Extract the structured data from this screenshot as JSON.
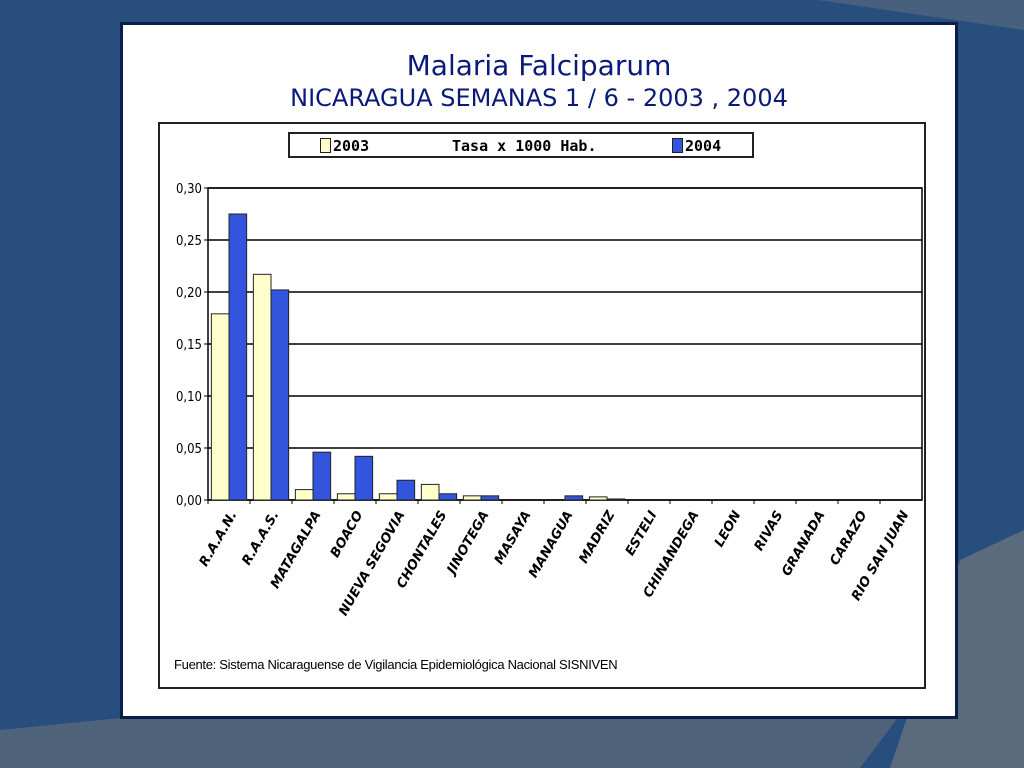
{
  "slide": {
    "title": "Malaria Falciparum",
    "subtitle": "NICARAGUA SEMANAS 1 / 6  -  2003 , 2004"
  },
  "legend": {
    "series_2003": "2003",
    "middle_text": "Tasa x 1000 Hab.",
    "series_2004": "2004"
  },
  "source": "Fuente: Sistema Nicaraguense de Vigilancia Epidemiológica Nacional SISNIVEN",
  "colors": {
    "background": "#274e7d",
    "series_2003": "#ffffcc",
    "series_2004": "#3355dd",
    "title": "#0a1a7a"
  },
  "chart_data": {
    "type": "bar",
    "categories": [
      "R.A.A.N.",
      "R.A.A.S.",
      "MATAGALPA",
      "BOACO",
      "NUEVA SEGOVIA",
      "CHONTALES",
      "JINOTEGA",
      "MASAYA",
      "MANAGUA",
      "MADRIZ",
      "ESTELI",
      "CHINANDEGA",
      "LEON",
      "RIVAS",
      "GRANADA",
      "CARAZO",
      "RIO SAN JUAN"
    ],
    "series": [
      {
        "name": "2003",
        "values": [
          0.179,
          0.217,
          0.01,
          0.006,
          0.006,
          0.015,
          0.004,
          0.0,
          0.0,
          0.003,
          0,
          0,
          0,
          0,
          0,
          0,
          0
        ]
      },
      {
        "name": "2004",
        "values": [
          0.275,
          0.202,
          0.046,
          0.042,
          0.019,
          0.006,
          0.004,
          0.0,
          0.004,
          0.001,
          0,
          0,
          0,
          0,
          0,
          0,
          0
        ]
      }
    ],
    "yticks": [
      "0,00",
      "0,05",
      "0,10",
      "0,15",
      "0,20",
      "0,25",
      "0,30"
    ],
    "ylim": [
      0,
      0.3
    ],
    "grid": true,
    "legend_position": "top"
  }
}
